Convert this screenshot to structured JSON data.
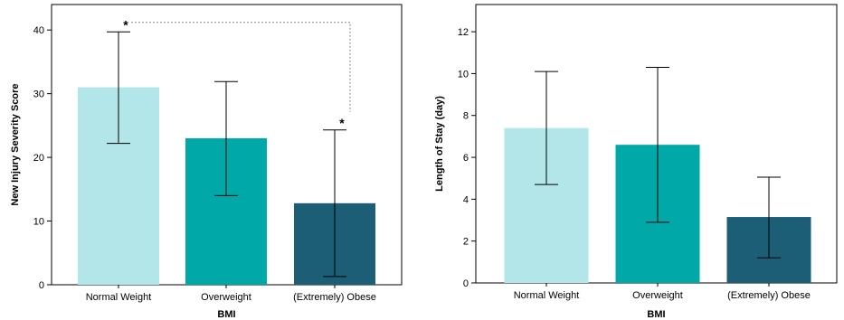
{
  "chart_data": [
    {
      "type": "bar",
      "title": "",
      "xlabel": "BMI",
      "ylabel": "New Injury Severity Score",
      "ylim": [
        0,
        44
      ],
      "yticks": [
        0,
        10,
        20,
        30,
        40
      ],
      "categories": [
        "Normal Weight",
        "Overweight",
        "(Extremely) Obese"
      ],
      "values": [
        31,
        23,
        12.8
      ],
      "error_low": [
        22.2,
        14,
        1.3
      ],
      "error_high": [
        39.7,
        31.9,
        24.3
      ],
      "colors": [
        "#b3e6e8",
        "#00a8a8",
        "#1b5e75"
      ],
      "grid": false,
      "annotations": [
        {
          "text": "*",
          "category": "Normal Weight"
        },
        {
          "text": "*",
          "category": "(Extremely) Obese"
        }
      ],
      "significance_bracket": {
        "from": "Normal Weight",
        "to": "(Extremely) Obese",
        "y": 41.2
      }
    },
    {
      "type": "bar",
      "title": "",
      "xlabel": "BMI",
      "ylabel": "Length of Stay (day)",
      "ylim": [
        0,
        13.3
      ],
      "yticks": [
        0,
        2,
        4,
        6,
        8,
        10,
        12
      ],
      "categories": [
        "Normal Weight",
        "Overweight",
        "(Extremely) Obese"
      ],
      "values": [
        7.4,
        6.6,
        3.15
      ],
      "error_low": [
        4.7,
        2.9,
        1.2
      ],
      "error_high": [
        10.1,
        10.3,
        5.05
      ],
      "colors": [
        "#b3e6e8",
        "#00a8a8",
        "#1b5e75"
      ],
      "grid": false,
      "annotations": []
    }
  ]
}
